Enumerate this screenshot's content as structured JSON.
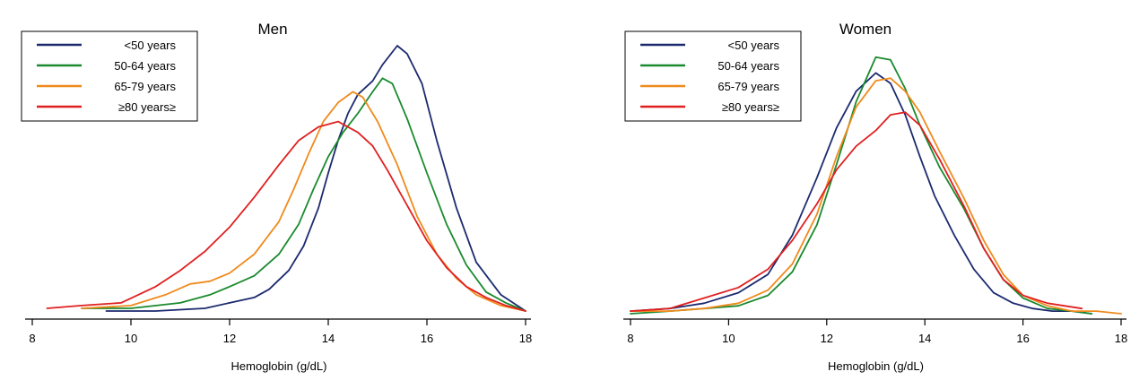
{
  "chart_data": [
    {
      "type": "line",
      "title": "Men",
      "xlabel": "Hemoglobin (g/dL)",
      "ylabel": "",
      "xlim": [
        8,
        18
      ],
      "ylim": [
        0,
        1
      ],
      "xticks": [
        "8",
        "10",
        "12",
        "14",
        "16",
        "18"
      ],
      "legend_position": "top-left",
      "series": [
        {
          "name": "<50 years",
          "color": "#1c2a6e",
          "x": [
            9.5,
            10.5,
            11.5,
            12.0,
            12.5,
            12.8,
            13.2,
            13.5,
            13.8,
            14.0,
            14.2,
            14.4,
            14.6,
            14.9,
            15.1,
            15.4,
            15.6,
            15.9,
            16.2,
            16.6,
            17.0,
            17.5,
            18.0
          ],
          "y": [
            0.01,
            0.01,
            0.02,
            0.04,
            0.06,
            0.09,
            0.16,
            0.25,
            0.39,
            0.52,
            0.64,
            0.74,
            0.81,
            0.86,
            0.92,
            0.99,
            0.96,
            0.85,
            0.64,
            0.39,
            0.19,
            0.07,
            0.01
          ]
        },
        {
          "name": "50-64 years",
          "color": "#1a8a2e",
          "x": [
            9.0,
            10.0,
            11.0,
            11.6,
            12.0,
            12.5,
            13.0,
            13.4,
            13.7,
            14.0,
            14.3,
            14.6,
            14.9,
            15.1,
            15.3,
            15.6,
            16.0,
            16.4,
            16.8,
            17.2,
            17.6,
            18.0
          ],
          "y": [
            0.02,
            0.02,
            0.04,
            0.07,
            0.1,
            0.14,
            0.22,
            0.33,
            0.46,
            0.58,
            0.67,
            0.74,
            0.82,
            0.87,
            0.85,
            0.72,
            0.52,
            0.33,
            0.18,
            0.08,
            0.04,
            0.01
          ]
        },
        {
          "name": "65-79 years",
          "color": "#f08a1c",
          "x": [
            9.0,
            10.0,
            10.7,
            11.2,
            11.6,
            12.0,
            12.5,
            13.0,
            13.3,
            13.6,
            13.9,
            14.2,
            14.5,
            14.7,
            15.0,
            15.4,
            15.8,
            16.2,
            16.6,
            17.0,
            17.5,
            18.0
          ],
          "y": [
            0.02,
            0.03,
            0.07,
            0.11,
            0.12,
            0.15,
            0.22,
            0.34,
            0.46,
            0.59,
            0.71,
            0.78,
            0.82,
            0.8,
            0.71,
            0.55,
            0.36,
            0.22,
            0.13,
            0.07,
            0.03,
            0.01
          ]
        },
        {
          "name": "≥80 years≥",
          "color": "#e02020",
          "x": [
            8.3,
            9.0,
            9.8,
            10.5,
            11.0,
            11.5,
            12.0,
            12.5,
            13.0,
            13.4,
            13.8,
            14.2,
            14.6,
            14.9,
            15.2,
            15.6,
            16.0,
            16.4,
            16.8,
            17.2,
            17.6,
            18.0
          ],
          "y": [
            0.02,
            0.03,
            0.04,
            0.1,
            0.16,
            0.23,
            0.32,
            0.43,
            0.55,
            0.64,
            0.69,
            0.71,
            0.67,
            0.62,
            0.53,
            0.4,
            0.27,
            0.17,
            0.1,
            0.06,
            0.03,
            0.01
          ]
        }
      ]
    },
    {
      "type": "line",
      "title": "Women",
      "xlabel": "Hemoglobin (g/dL)",
      "ylabel": "",
      "xlim": [
        8,
        18
      ],
      "ylim": [
        0,
        1
      ],
      "xticks": [
        "8",
        "10",
        "12",
        "14",
        "16",
        "18"
      ],
      "legend_position": "top-left",
      "series": [
        {
          "name": "<50 years",
          "color": "#1c2a6e",
          "x": [
            8.0,
            8.8,
            9.5,
            10.2,
            10.8,
            11.3,
            11.8,
            12.2,
            12.6,
            13.0,
            13.3,
            13.6,
            13.9,
            14.2,
            14.6,
            15.0,
            15.4,
            15.8,
            16.2,
            16.6,
            17.0,
            17.4
          ],
          "y": [
            0.01,
            0.02,
            0.04,
            0.08,
            0.15,
            0.3,
            0.52,
            0.71,
            0.85,
            0.92,
            0.88,
            0.76,
            0.6,
            0.45,
            0.3,
            0.17,
            0.08,
            0.04,
            0.02,
            0.01,
            0.01,
            0.0
          ]
        },
        {
          "name": "50-64 years",
          "color": "#1a8a2e",
          "x": [
            8.0,
            8.8,
            9.5,
            10.2,
            10.8,
            11.3,
            11.8,
            12.2,
            12.6,
            13.0,
            13.3,
            13.6,
            13.9,
            14.3,
            14.8,
            15.2,
            15.6,
            16.0,
            16.5,
            17.0,
            17.4
          ],
          "y": [
            0.0,
            0.01,
            0.02,
            0.03,
            0.07,
            0.16,
            0.34,
            0.57,
            0.81,
            0.98,
            0.97,
            0.86,
            0.72,
            0.56,
            0.4,
            0.25,
            0.13,
            0.06,
            0.02,
            0.01,
            0.0
          ]
        },
        {
          "name": "65-79 years",
          "color": "#f08a1c",
          "x": [
            8.0,
            8.8,
            9.5,
            10.2,
            10.8,
            11.3,
            11.8,
            12.2,
            12.6,
            13.0,
            13.3,
            13.6,
            13.9,
            14.3,
            14.8,
            15.2,
            15.6,
            16.0,
            16.5,
            17.0,
            17.5,
            18.0
          ],
          "y": [
            0.01,
            0.01,
            0.02,
            0.04,
            0.09,
            0.19,
            0.38,
            0.6,
            0.79,
            0.89,
            0.9,
            0.85,
            0.77,
            0.62,
            0.44,
            0.28,
            0.15,
            0.07,
            0.03,
            0.01,
            0.01,
            0.0
          ]
        },
        {
          "name": "≥80 years≥",
          "color": "#e02020",
          "x": [
            8.0,
            8.8,
            9.5,
            10.2,
            10.8,
            11.3,
            11.8,
            12.2,
            12.6,
            13.0,
            13.3,
            13.6,
            13.9,
            14.3,
            14.8,
            15.2,
            15.6,
            16.0,
            16.5,
            17.2
          ],
          "y": [
            0.01,
            0.02,
            0.06,
            0.1,
            0.17,
            0.28,
            0.42,
            0.55,
            0.64,
            0.7,
            0.76,
            0.77,
            0.72,
            0.59,
            0.41,
            0.25,
            0.13,
            0.07,
            0.04,
            0.02
          ]
        }
      ]
    }
  ]
}
